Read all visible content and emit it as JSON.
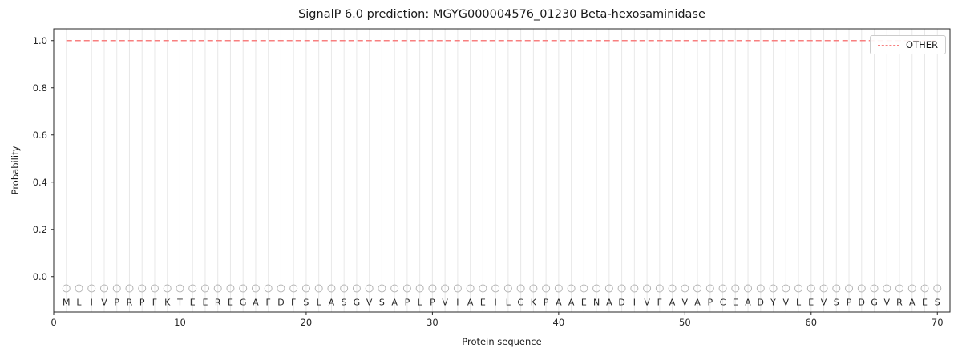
{
  "chart_data": {
    "type": "line",
    "title": "SignalP 6.0 prediction: MGYG000004576_01230 Beta-hexosaminidase",
    "xlabel": "Protein sequence",
    "ylabel": "Probability",
    "xlim": [
      0,
      71
    ],
    "ylim": [
      -0.15,
      1.05
    ],
    "x_ticks": [
      0,
      10,
      20,
      30,
      40,
      50,
      60,
      70
    ],
    "y_ticks": [
      "0.0",
      "0.2",
      "0.4",
      "0.6",
      "0.8",
      "1.0"
    ],
    "grid": "light vertical gridline at each residue position",
    "sequence": [
      "M",
      "L",
      "I",
      "V",
      "P",
      "R",
      "P",
      "F",
      "K",
      "T",
      "E",
      "E",
      "R",
      "E",
      "G",
      "A",
      "F",
      "D",
      "F",
      "S",
      "L",
      "A",
      "S",
      "G",
      "V",
      "S",
      "A",
      "P",
      "L",
      "P",
      "V",
      "I",
      "A",
      "E",
      "I",
      "L",
      "G",
      "K",
      "P",
      "A",
      "A",
      "E",
      "N",
      "A",
      "D",
      "I",
      "V",
      "F",
      "A",
      "V",
      "A",
      "P",
      "C",
      "E",
      "A",
      "D",
      "Y",
      "V",
      "L",
      "E",
      "V",
      "S",
      "P",
      "D",
      "G",
      "V",
      "R",
      "A",
      "E",
      "S"
    ],
    "series": [
      {
        "name": "OTHER",
        "style": "dashed",
        "color": "#f87f7f",
        "constant_value": 1.0,
        "x_start": 1,
        "x_end": 70
      }
    ],
    "residue_markers": {
      "shape": "open-circle",
      "y": -0.05,
      "color": "#b3b3b3"
    },
    "legend": {
      "position": "upper right",
      "entries": [
        {
          "label": "OTHER",
          "color": "#f87f7f",
          "style": "dashed"
        }
      ]
    },
    "colors": {
      "frame": "#262626",
      "grid": "#e8e8e8",
      "text": "#262626",
      "letters": "#262626",
      "background": "#ffffff"
    }
  }
}
